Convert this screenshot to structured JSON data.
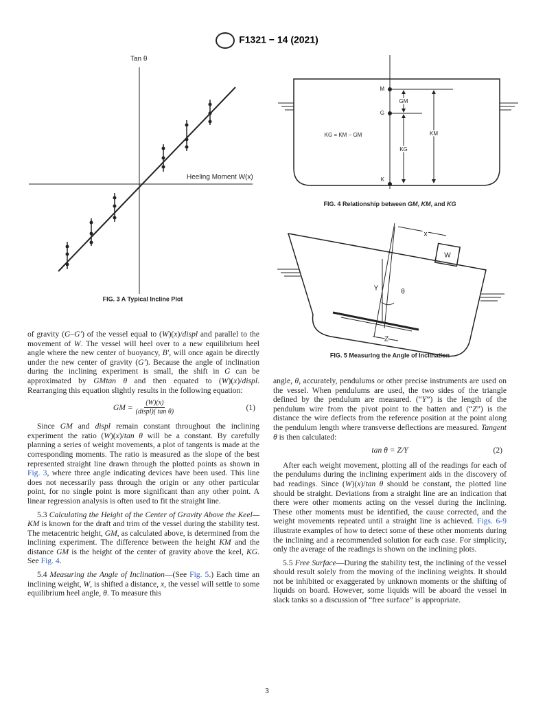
{
  "header": {
    "title": "F1321 − 14 (2021)"
  },
  "fig3": {
    "y_label": "Tan θ",
    "x_label": "Heeling Moment W(x)",
    "caption": "FIG. 3 A Typical Incline Plot"
  },
  "fig4": {
    "labels": [
      "M",
      "G",
      "K",
      "GM",
      "KG",
      "KM"
    ],
    "equation": "KG = KM − GM",
    "caption": [
      {
        "text": "FIG. 4 Relationship between "
      },
      {
        "text": "GM",
        "em": true
      },
      {
        "text": ", "
      },
      {
        "text": "KM",
        "em": true
      },
      {
        "text": ", and "
      },
      {
        "text": "KG",
        "em": true
      }
    ]
  },
  "fig5": {
    "labels": [
      "x",
      "W",
      "Y",
      "θ",
      "Z"
    ],
    "caption": "FIG. 5 Measuring the Angle of Inclination"
  },
  "left": [
    {
      "indent": false,
      "runs": [
        {
          "text": "of gravity ("
        },
        {
          "text": "G–G′",
          "em": true
        },
        {
          "text": ") of the vessel equal to ("
        },
        {
          "text": "W",
          "em": true
        },
        {
          "text": ")("
        },
        {
          "text": "x",
          "em": true
        },
        {
          "text": ")/"
        },
        {
          "text": "displ",
          "em": true
        },
        {
          "text": " and parallel to the movement of "
        },
        {
          "text": "W",
          "em": true
        },
        {
          "text": ". The vessel will heel over to a new equilibrium heel angle where the new center of buoyancy, "
        },
        {
          "text": "B′",
          "em": true
        },
        {
          "text": ", will once again be directly under the new center of gravity ("
        },
        {
          "text": "G′",
          "em": true
        },
        {
          "text": "). Because the angle of inclination during the inclining experiment is small, the shift in "
        },
        {
          "text": "G",
          "em": true
        },
        {
          "text": " can be approximated by "
        },
        {
          "text": "GMtan θ",
          "em": true
        },
        {
          "text": " and then equated to ("
        },
        {
          "text": "W",
          "em": true
        },
        {
          "text": ")("
        },
        {
          "text": "x",
          "em": true
        },
        {
          "text": ")/"
        },
        {
          "text": "displ",
          "em": true
        },
        {
          "text": ". Rearranging this equation slightly results in the following equation:"
        }
      ]
    },
    {
      "equation": {
        "lhs": "GM =",
        "num": "(W)(x)",
        "den": "(displ)( tan θ)",
        "number": "(1)"
      }
    },
    {
      "indent": true,
      "runs": [
        {
          "text": "Since "
        },
        {
          "text": "GM",
          "em": true
        },
        {
          "text": " and "
        },
        {
          "text": "displ",
          "em": true
        },
        {
          "text": " remain constant throughout the inclining experiment the ratio ("
        },
        {
          "text": "W",
          "em": true
        },
        {
          "text": ")("
        },
        {
          "text": "x",
          "em": true
        },
        {
          "text": ")/"
        },
        {
          "text": "tan θ",
          "em": true
        },
        {
          "text": " will be a constant. By carefully planning a series of weight movements, a plot of tangents is made at the corresponding moments. The ratio is measured as the slope of the best represented straight line drawn through the plotted points as shown in "
        },
        {
          "text": "Fig. 3",
          "link": true
        },
        {
          "text": ", where three angle indicating devices have been used. This line does not necessarily pass through the origin or any other particular point, for no single point is more significant than any other point. A linear regression analysis is often used to fit the straight line."
        }
      ]
    },
    {
      "indent": true,
      "runs": [
        {
          "text": "5.3 "
        },
        {
          "text": "Calculating the Height of the Center of Gravity Above the Keel—KM",
          "em": true
        },
        {
          "text": " is known for the draft and trim of the vessel during the stability test. The metacentric height, "
        },
        {
          "text": "GM",
          "em": true
        },
        {
          "text": ", as calculated above, is determined from the inclining experiment. The difference between the height "
        },
        {
          "text": "KM",
          "em": true
        },
        {
          "text": " and the distance "
        },
        {
          "text": "GM",
          "em": true
        },
        {
          "text": " is the height of the center of gravity above the keel, "
        },
        {
          "text": "KG",
          "em": true
        },
        {
          "text": ". See "
        },
        {
          "text": "Fig. 4",
          "link": true
        },
        {
          "text": "."
        }
      ]
    },
    {
      "indent": true,
      "runs": [
        {
          "text": "5.4 "
        },
        {
          "text": "Measuring the Angle of Inclination",
          "em": true
        },
        {
          "text": "—(See "
        },
        {
          "text": "Fig. 5",
          "link": true
        },
        {
          "text": ".) Each time an inclining weight, "
        },
        {
          "text": "W",
          "em": true
        },
        {
          "text": ", is shifted a distance, "
        },
        {
          "text": "x",
          "em": true
        },
        {
          "text": ", the vessel will settle to some equilibrium heel angle, "
        },
        {
          "text": "θ",
          "em": true
        },
        {
          "text": ". To measure this"
        }
      ]
    }
  ],
  "right": [
    {
      "indent": false,
      "runs": [
        {
          "text": "angle, "
        },
        {
          "text": "θ",
          "em": true
        },
        {
          "text": ", accurately, pendulums or other precise instruments are used on the vessel. When pendulums are used, the two sides of the triangle defined by the pendulum are measured. (“"
        },
        {
          "text": "Y",
          "em": true
        },
        {
          "text": "”) is the length of the pendulum wire from the pivot point to the batten and (“"
        },
        {
          "text": "Z",
          "em": true
        },
        {
          "text": "”) is the distance the wire deflects from the reference position at the point along the pendulum length where transverse deflections are measured. "
        },
        {
          "text": "Tangent θ",
          "em": true
        },
        {
          "text": " is then calculated:"
        }
      ]
    },
    {
      "equation": {
        "lhs": "tan θ = Z/Y",
        "number": "(2)"
      }
    },
    {
      "indent": true,
      "runs": [
        {
          "text": "After each weight movement, plotting all of the readings for each of the pendulums during the inclining experiment aids in the discovery of bad readings. Since ("
        },
        {
          "text": "W",
          "em": true
        },
        {
          "text": ")("
        },
        {
          "text": "x",
          "em": true
        },
        {
          "text": ")/"
        },
        {
          "text": "tan θ",
          "em": true
        },
        {
          "text": " should be constant, the plotted line should be straight. Deviations from a straight line are an indication that there were other moments acting on the vessel during the inclining. These other moments must be identified, the cause corrected, and the weight movements repeated until a straight line is achieved. "
        },
        {
          "text": "Figs. 6-9",
          "link": true
        },
        {
          "text": " illustrate examples of how to detect some of these other moments during the inclining and a recommended solution for each case. For simplicity, only the average of the readings is shown on the inclining plots."
        }
      ]
    },
    {
      "indent": true,
      "runs": [
        {
          "text": "5.5 "
        },
        {
          "text": "Free Surface",
          "em": true
        },
        {
          "text": "—During the stability test, the inclining of the vessel should result solely from the moving of the inclining weights. It should not be inhibited or exaggerated by unknown moments or the shifting of liquids on board. However, some liquids will be aboard the vessel in slack tanks so a discussion of “free surface” is appropriate."
        }
      ]
    }
  ],
  "page_number": "3"
}
